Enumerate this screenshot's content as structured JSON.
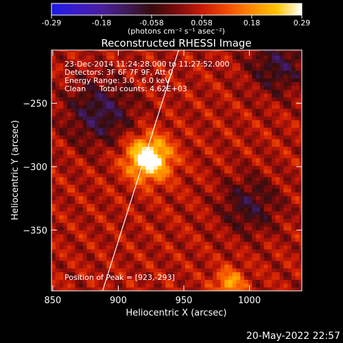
{
  "chart_data": {
    "type": "heatmap",
    "title": "Reconstructed RHESSI Image",
    "xlabel": "Heliocentric X (arcsec)",
    "ylabel": "Heliocentric Y (arcsec)",
    "xlim": [
      849,
      1040
    ],
    "ylim": [
      -398,
      -208
    ],
    "x_ticks": [
      850,
      900,
      950,
      1000
    ],
    "y_ticks": [
      -250,
      -300,
      -350
    ],
    "colorbar": {
      "range": [
        -0.29,
        0.29
      ],
      "ticks": [
        "-0.29",
        "-0.18",
        "-0.058",
        "0.058",
        "0.18",
        "0.29"
      ],
      "unit_label": "(photons cm⁻² s⁻¹ asec⁻²)",
      "colormap": [
        "#1c1ce6",
        "#3a1cc8",
        "#4a1e9e",
        "#3f1a58",
        "#350c0c",
        "#7a0c0c",
        "#c81a06",
        "#f04a00",
        "#ff8a00",
        "#ffc400",
        "#ffffff"
      ]
    },
    "annotations": [
      "23-Dec-2014 11:24:28.000 to 11:27:52.000",
      "Detectors: 3F 6F 7F 9F, Att 0",
      "Energy Range: 3.0 - 6.0 keV",
      "Clean",
      "Total counts: 4.62E+03"
    ],
    "peak": {
      "label": "Position of Peak = [923,-293]",
      "x": 923,
      "y": -293,
      "value": 0.29
    },
    "limb_line": [
      [
        888,
        -398
      ],
      [
        946,
        -208
      ]
    ],
    "sources": [
      {
        "x": 923,
        "y": -293,
        "value": 0.29,
        "sigma": 12
      },
      {
        "x": 886,
        "y": -257,
        "value": -0.14,
        "sigma": 18
      },
      {
        "x": 1022,
        "y": -220,
        "value": -0.12,
        "sigma": 16
      },
      {
        "x": 1000,
        "y": -330,
        "value": -0.11,
        "sigma": 16
      },
      {
        "x": 985,
        "y": -392,
        "value": 0.16,
        "sigma": 8
      }
    ],
    "timestamp": "20-May-2022 22:57"
  }
}
